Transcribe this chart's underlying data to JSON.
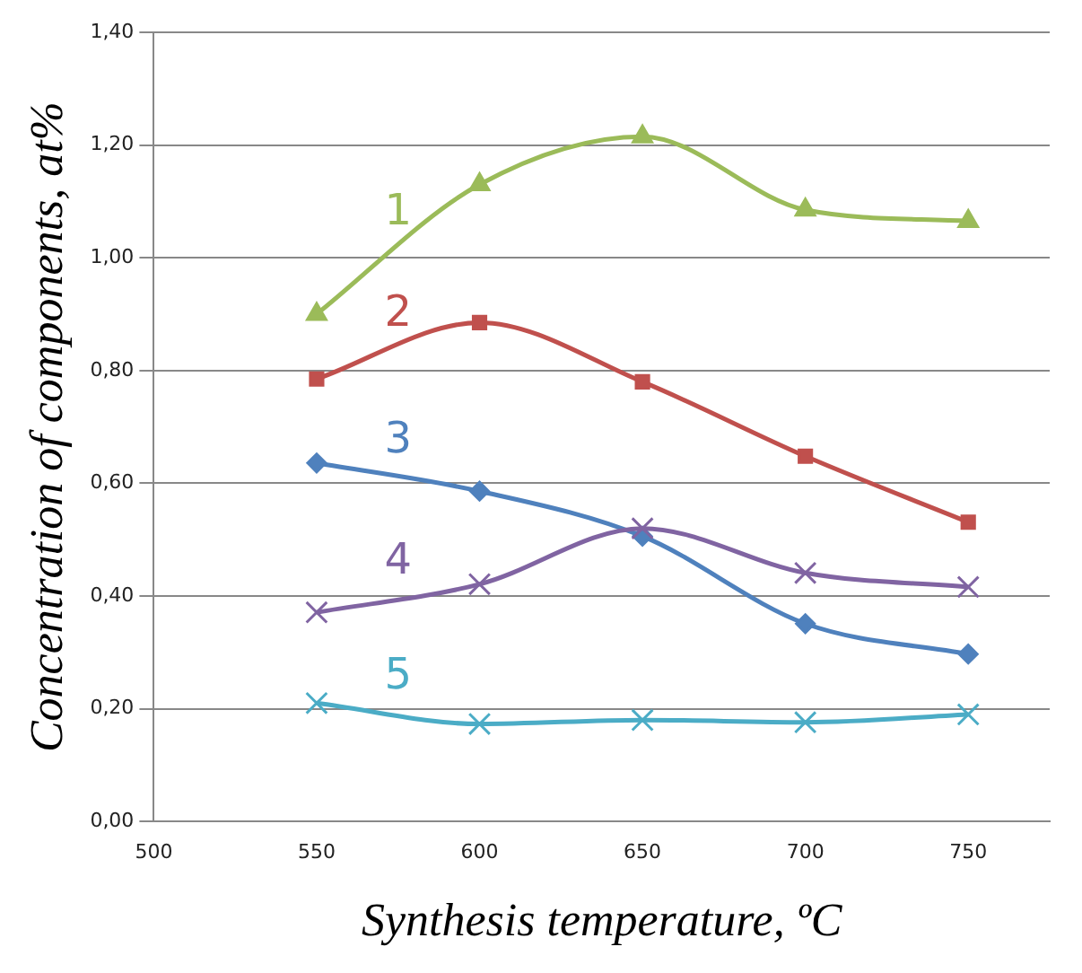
{
  "chart_data": {
    "type": "line",
    "xlabel": "Synthesis temperature, ºC",
    "ylabel": "Concentration of components, at%",
    "x": [
      550,
      600,
      650,
      700,
      750
    ],
    "series": [
      {
        "name": "1",
        "color": "#9bbb59",
        "marker": "triangle",
        "values": [
          0.9,
          1.13,
          1.215,
          1.085,
          1.065
        ]
      },
      {
        "name": "2",
        "color": "#c0504d",
        "marker": "square",
        "values": [
          0.785,
          0.885,
          0.78,
          0.648,
          0.531
        ]
      },
      {
        "name": "3",
        "color": "#4f81bd",
        "marker": "diamond",
        "values": [
          0.636,
          0.586,
          0.506,
          0.351,
          0.297
        ]
      },
      {
        "name": "4",
        "color": "#8064a2",
        "marker": "cross",
        "values": [
          0.371,
          0.421,
          0.52,
          0.441,
          0.416
        ]
      },
      {
        "name": "5",
        "color": "#4bacc6",
        "marker": "cross",
        "values": [
          0.21,
          0.173,
          0.18,
          0.176,
          0.19
        ]
      }
    ],
    "xlim": [
      500,
      775
    ],
    "xticks": [
      500,
      550,
      600,
      650,
      700,
      750
    ],
    "ylim": [
      0,
      1.4
    ],
    "yticks": [
      {
        "value": 0,
        "label": "0,00"
      },
      {
        "value": 0.2,
        "label": "0,20"
      },
      {
        "value": 0.4,
        "label": "0,40"
      },
      {
        "value": 0.6,
        "label": "0,60"
      },
      {
        "value": 0.8,
        "label": "0,80"
      },
      {
        "value": 1.0,
        "label": "1,00"
      },
      {
        "value": 1.2,
        "label": "1,20"
      },
      {
        "value": 1.4,
        "label": "1,40"
      }
    ],
    "grid": "y",
    "legend": false,
    "line_style": "solid"
  }
}
